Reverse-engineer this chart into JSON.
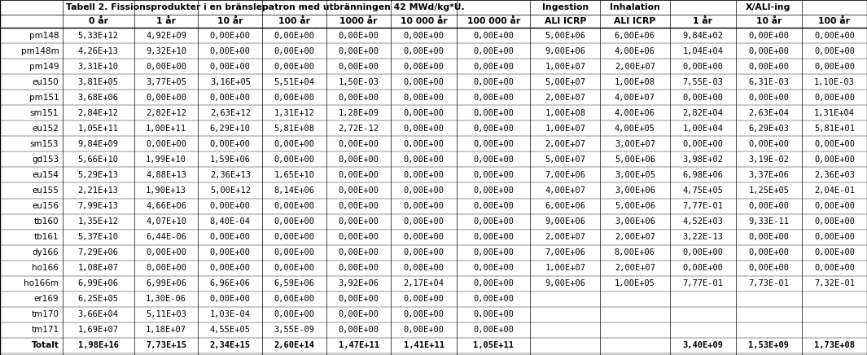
{
  "title": "Tabell 2. Fissionsprodukter i en bränslepatron med utbränningen 42 MWd/kg*U.",
  "col_headers": [
    "",
    "0 år",
    "1 år",
    "10 år",
    "100 år",
    "1000 år",
    "10 000 år",
    "100 000 år",
    "ALI ICRP",
    "ALI ICRP",
    "1 år",
    "10 år",
    "100 år"
  ],
  "group_header_ingestion": "Ingestion",
  "group_header_inhalation": "Inhalation",
  "group_header_xali": "X/ALI-ing",
  "rows": [
    [
      "pm148",
      "5,33E+12",
      "4,92E+09",
      "0,00E+00",
      "0,00E+00",
      "0,00E+00",
      "0,00E+00",
      "0,00E+00",
      "5,00E+06",
      "6,00E+06",
      "9,84E+02",
      "0,00E+00",
      "0,00E+00"
    ],
    [
      "pm148m",
      "4,26E+13",
      "9,32E+10",
      "0,00E+00",
      "0,00E+00",
      "0,00E+00",
      "0,00E+00",
      "0,00E+00",
      "9,00E+06",
      "4,00E+06",
      "1,04E+04",
      "0,00E+00",
      "0,00E+00"
    ],
    [
      "pm149",
      "3,31E+10",
      "0,00E+00",
      "0,00E+00",
      "0,00E+00",
      "0,00E+00",
      "0,00E+00",
      "0,00E+00",
      "1,00E+07",
      "2,00E+07",
      "0,00E+00",
      "0,00E+00",
      "0,00E+00"
    ],
    [
      "eu150",
      "3,81E+05",
      "3,77E+05",
      "3,16E+05",
      "5,51E+04",
      "1,50E-03",
      "0,00E+00",
      "0,00E+00",
      "5,00E+07",
      "1,00E+08",
      "7,55E-03",
      "6,31E-03",
      "1,10E-03"
    ],
    [
      "pm151",
      "3,68E+06",
      "0,00E+00",
      "0,00E+00",
      "0,00E+00",
      "0,00E+00",
      "0,00E+00",
      "0,00E+00",
      "2,00E+07",
      "4,00E+07",
      "0,00E+00",
      "0,00E+00",
      "0,00E+00"
    ],
    [
      "sm151",
      "2,84E+12",
      "2,82E+12",
      "2,63E+12",
      "1,31E+12",
      "1,28E+09",
      "0,00E+00",
      "0,00E+00",
      "1,00E+08",
      "4,00E+06",
      "2,82E+04",
      "2,63E+04",
      "1,31E+04"
    ],
    [
      "eu152",
      "1,05E+11",
      "1,00E+11",
      "6,29E+10",
      "5,81E+08",
      "2,72E-12",
      "0,00E+00",
      "0,00E+00",
      "1,00E+07",
      "4,00E+05",
      "1,00E+04",
      "6,29E+03",
      "5,81E+01"
    ],
    [
      "sm153",
      "9,84E+09",
      "0,00E+00",
      "0,00E+00",
      "0,00E+00",
      "0,00E+00",
      "0,00E+00",
      "0,00E+00",
      "2,00E+07",
      "3,00E+07",
      "0,00E+00",
      "0,00E+00",
      "0,00E+00"
    ],
    [
      "gd153",
      "5,66E+10",
      "1,99E+10",
      "1,59E+06",
      "0,00E+00",
      "0,00E+00",
      "0,00E+00",
      "0,00E+00",
      "5,00E+07",
      "5,00E+06",
      "3,98E+02",
      "3,19E-02",
      "0,00E+00"
    ],
    [
      "eu154",
      "5,29E+13",
      "4,88E+13",
      "2,36E+13",
      "1,65E+10",
      "0,00E+00",
      "0,00E+00",
      "0,00E+00",
      "7,00E+06",
      "3,00E+05",
      "6,98E+06",
      "3,37E+06",
      "2,36E+03"
    ],
    [
      "eu155",
      "2,21E+13",
      "1,90E+13",
      "5,00E+12",
      "8,14E+06",
      "0,00E+00",
      "0,00E+00",
      "0,00E+00",
      "4,00E+07",
      "3,00E+06",
      "4,75E+05",
      "1,25E+05",
      "2,04E-01"
    ],
    [
      "eu156",
      "7,99E+13",
      "4,66E+06",
      "0,00E+00",
      "0,00E+00",
      "0,00E+00",
      "0,00E+00",
      "0,00E+00",
      "6,00E+06",
      "5,00E+06",
      "7,77E-01",
      "0,00E+00",
      "0,00E+00"
    ],
    [
      "tb160",
      "1,35E+12",
      "4,07E+10",
      "8,40E-04",
      "0,00E+00",
      "0,00E+00",
      "0,00E+00",
      "0,00E+00",
      "9,00E+06",
      "3,00E+06",
      "4,52E+03",
      "9,33E-11",
      "0,00E+00"
    ],
    [
      "tb161",
      "5,37E+10",
      "6,44E-06",
      "0,00E+00",
      "0,00E+00",
      "0,00E+00",
      "0,00E+00",
      "0,00E+00",
      "2,00E+07",
      "2,00E+07",
      "3,22E-13",
      "0,00E+00",
      "0,00E+00"
    ],
    [
      "dy166",
      "7,29E+06",
      "0,00E+00",
      "0,00E+00",
      "0,00E+00",
      "0,00E+00",
      "0,00E+00",
      "0,00E+00",
      "7,00E+06",
      "8,00E+06",
      "0,00E+00",
      "0,00E+00",
      "0,00E+00"
    ],
    [
      "ho166",
      "1,08E+07",
      "0,00E+00",
      "0,00E+00",
      "0,00E+00",
      "0,00E+00",
      "0,00E+00",
      "0,00E+00",
      "1,00E+07",
      "2,00E+07",
      "0,00E+00",
      "0,00E+00",
      "0,00E+00"
    ],
    [
      "ho166m",
      "6,99E+06",
      "6,99E+06",
      "6,96E+06",
      "6,59E+06",
      "3,92E+06",
      "2,17E+04",
      "0,00E+00",
      "9,00E+06",
      "1,00E+05",
      "7,77E-01",
      "7,73E-01",
      "7,32E-01"
    ],
    [
      "er169",
      "6,25E+05",
      "1,30E-06",
      "0,00E+00",
      "0,00E+00",
      "0,00E+00",
      "0,00E+00",
      "0,00E+00",
      "",
      "",
      "",
      "",
      ""
    ],
    [
      "tm170",
      "3,66E+04",
      "5,11E+03",
      "1,03E-04",
      "0,00E+00",
      "0,00E+00",
      "0,00E+00",
      "0,00E+00",
      "",
      "",
      "",
      "",
      ""
    ],
    [
      "tm171",
      "1,69E+07",
      "1,18E+07",
      "4,55E+05",
      "3,55E-09",
      "0,00E+00",
      "0,00E+00",
      "0,00E+00",
      "",
      "",
      "",
      "",
      ""
    ],
    [
      "Totalt",
      "1,98E+16",
      "7,73E+15",
      "2,34E+15",
      "2,60E+14",
      "1,47E+11",
      "1,41E+11",
      "1,05E+11",
      "",
      "",
      "3,40E+09",
      "1,53E+09",
      "1,73E+08"
    ]
  ],
  "font_size": 7.5,
  "header_font_size": 7.8,
  "fig_width": 10.65,
  "fig_height": 4.36
}
